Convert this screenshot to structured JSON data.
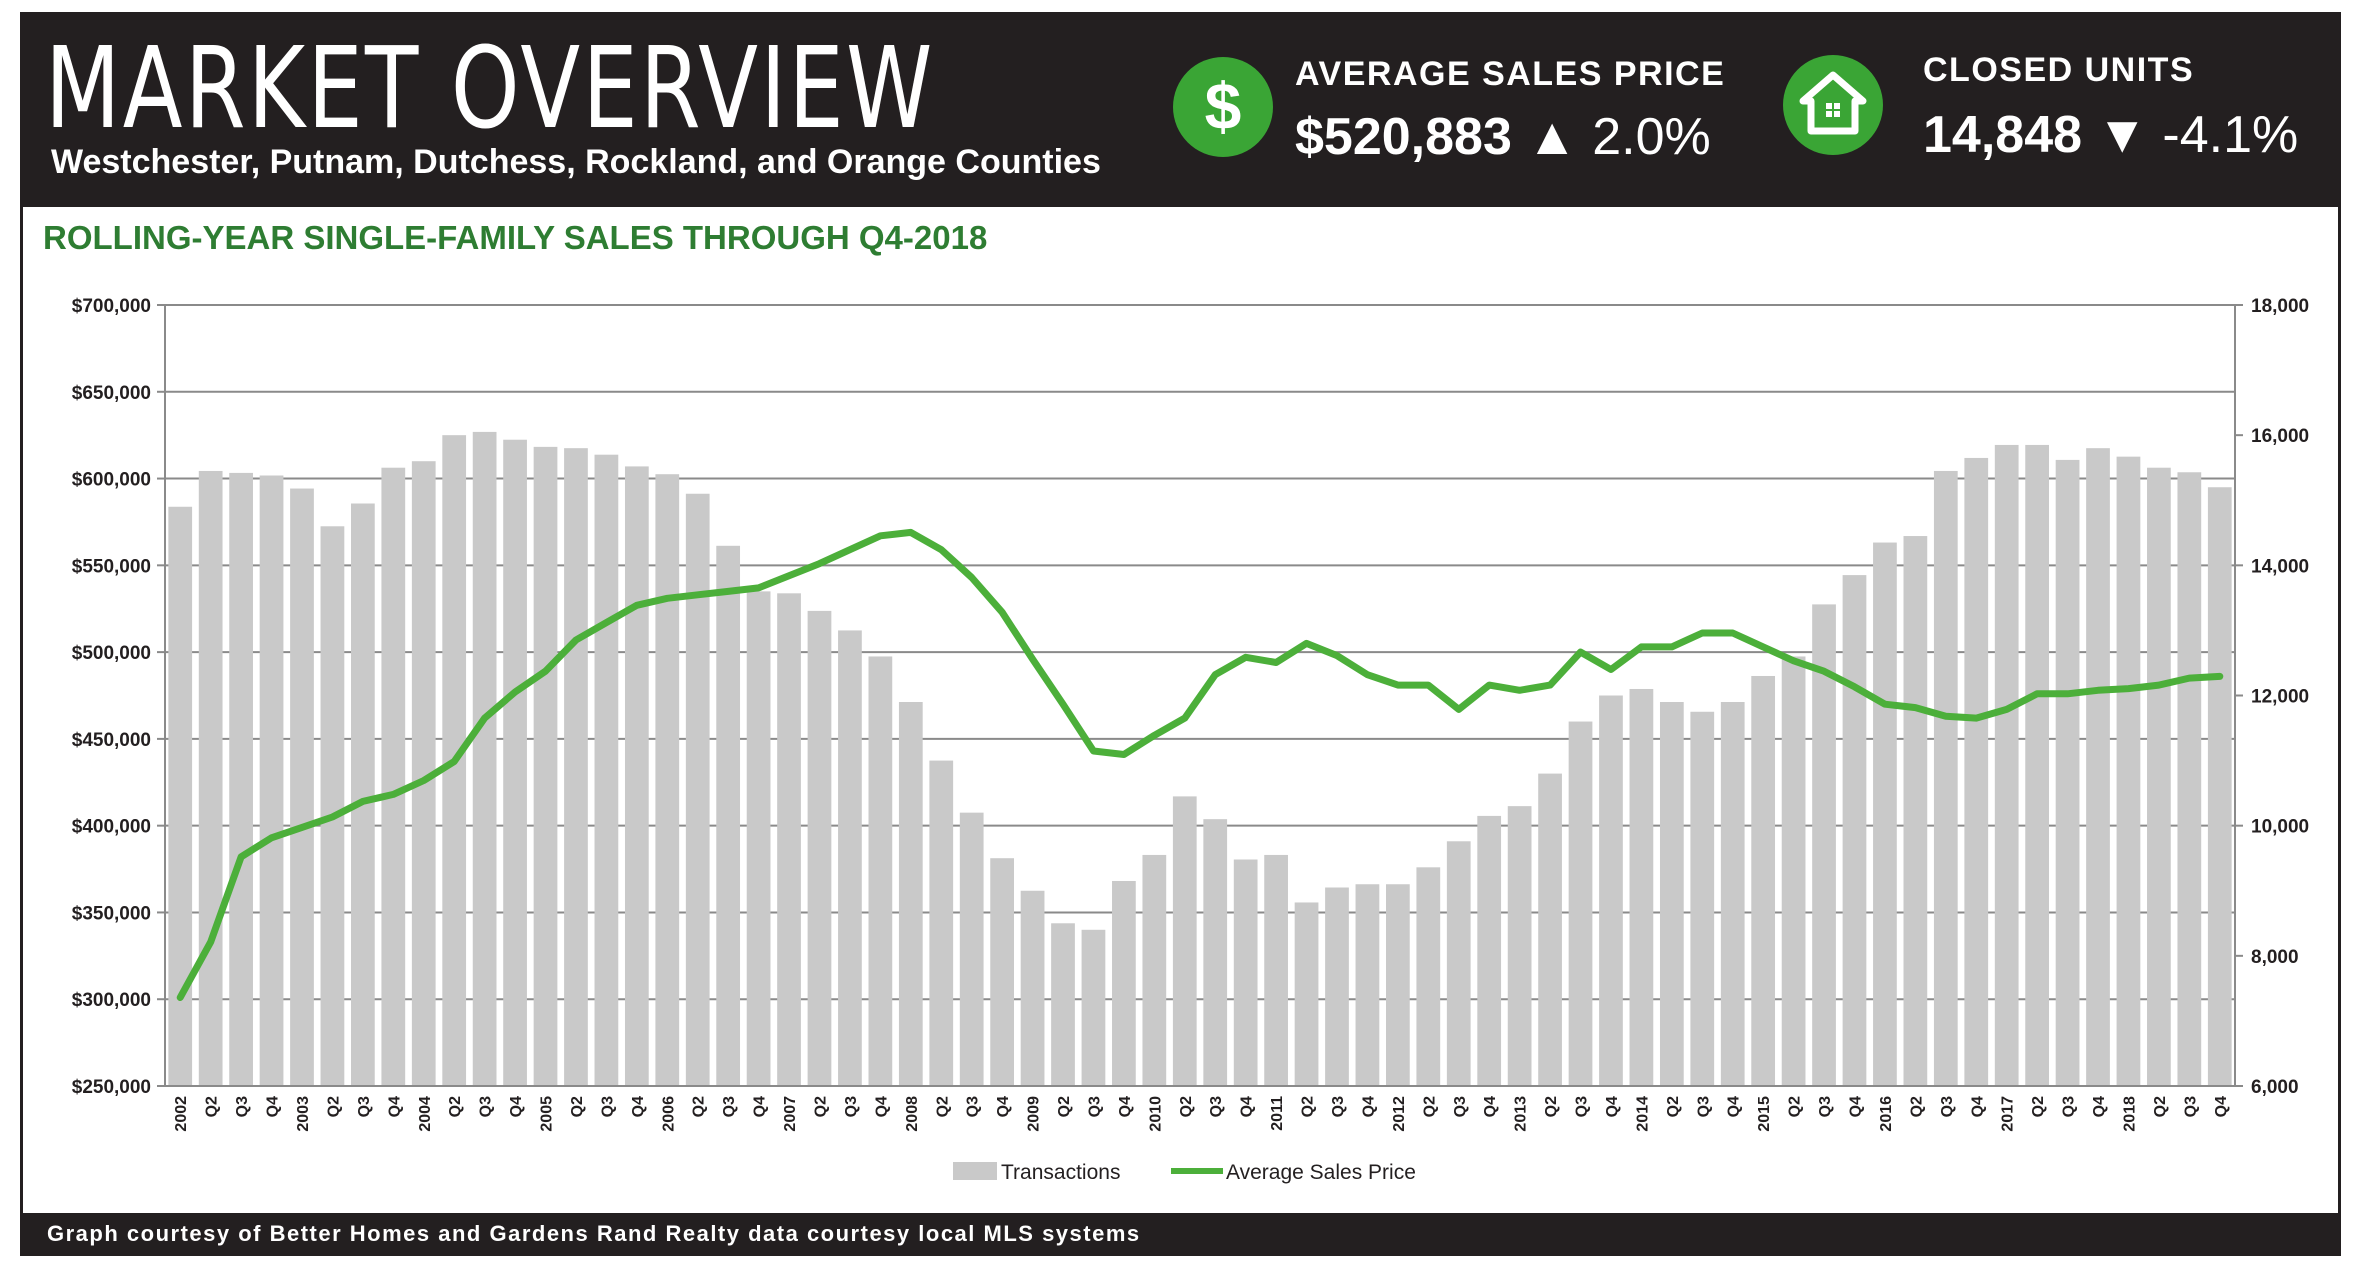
{
  "header": {
    "title": "MARKET OVERVIEW",
    "subtitle": "Westchester, Putnam, Dutchess, Rockland, and Orange Counties"
  },
  "stats": {
    "price": {
      "icon": "dollar-icon",
      "icon_glyph": "$",
      "label": "AVERAGE SALES PRICE",
      "value": "$520,883",
      "arrow": "▲",
      "change": "2.0%"
    },
    "units": {
      "icon": "house-icon",
      "label": "CLOSED UNITS",
      "value": "14,848",
      "arrow": "▼",
      "change": "-4.1%"
    }
  },
  "colors": {
    "header_bg": "#231f20",
    "accent_green": "#3aa535",
    "heading_green": "#2e7d32",
    "bar_gray": "#c9c9c9",
    "line_green": "#4caf3a"
  },
  "chart_data": {
    "type": "bar",
    "title": "ROLLING-YEAR SINGLE-FAMILY SALES THROUGH Q4-2018",
    "categories": [
      "2002",
      "Q2",
      "Q3",
      "Q4",
      "2003",
      "Q2",
      "Q3",
      "Q4",
      "2004",
      "Q2",
      "Q3",
      "Q4",
      "2005",
      "Q2",
      "Q3",
      "Q4",
      "2006",
      "Q2",
      "Q3",
      "Q4",
      "2007",
      "Q2",
      "Q3",
      "Q4",
      "2008",
      "Q2",
      "Q3",
      "Q4",
      "2009",
      "Q2",
      "Q3",
      "Q4",
      "2010",
      "Q2",
      "Q3",
      "Q4",
      "2011",
      "Q2",
      "Q3",
      "Q4",
      "2012",
      "Q2",
      "Q3",
      "Q4",
      "2013",
      "Q2",
      "Q3",
      "Q4",
      "2014",
      "Q2",
      "Q3",
      "Q4",
      "2015",
      "Q2",
      "Q3",
      "Q4",
      "2016",
      "Q2",
      "Q3",
      "Q4",
      "2017",
      "Q2",
      "Q3",
      "Q4",
      "2018",
      "Q2",
      "Q3",
      "Q4"
    ],
    "series": [
      {
        "name": "Transactions",
        "type": "bar",
        "axis": "right",
        "values": [
          14900,
          15450,
          15420,
          15380,
          15180,
          14600,
          14950,
          15500,
          15600,
          16000,
          16050,
          15930,
          15820,
          15800,
          15700,
          15520,
          15400,
          15100,
          14300,
          13600,
          13570,
          13300,
          13000,
          12600,
          11900,
          11000,
          10200,
          9500,
          9000,
          8500,
          8400,
          9150,
          9550,
          10450,
          10100,
          9480,
          9550,
          8820,
          9050,
          9100,
          9100,
          9360,
          9760,
          10150,
          10300,
          10800,
          11600,
          12000,
          12100,
          11900,
          11750,
          11900,
          12300,
          12600,
          13400,
          13850,
          14350,
          14450,
          15450,
          15650,
          15850,
          15850,
          15620,
          15800,
          15670,
          15500,
          15430,
          15200
        ]
      },
      {
        "name": "Average Sales Price",
        "type": "line",
        "axis": "left",
        "values": [
          301000,
          333000,
          382000,
          393000,
          399000,
          405000,
          414000,
          418000,
          426000,
          437000,
          462000,
          477000,
          489000,
          507000,
          517000,
          527000,
          531000,
          533000,
          535000,
          537000,
          544000,
          551000,
          559000,
          567000,
          569000,
          559000,
          543000,
          523000,
          496000,
          470000,
          443000,
          441000,
          452000,
          462000,
          487000,
          497000,
          494000,
          505000,
          498000,
          487000,
          481000,
          481000,
          467000,
          481000,
          478000,
          481000,
          500000,
          490000,
          503000,
          503000,
          511000,
          511000,
          503000,
          495000,
          489000,
          480000,
          470000,
          468000,
          463000,
          462000,
          467000,
          476000,
          476000,
          478000,
          479000,
          481000,
          485000,
          486000
        ]
      }
    ],
    "y_left": {
      "min": 250000,
      "max": 700000,
      "ticks": [
        "$250,000",
        "$300,000",
        "$350,000",
        "$400,000",
        "$450,000",
        "$500,000",
        "$550,000",
        "$600,000",
        "$650,000",
        "$700,000"
      ]
    },
    "y_right": {
      "min": 6000,
      "max": 18000,
      "ticks": [
        "6,000",
        "8,000",
        "10,000",
        "12,000",
        "14,000",
        "16,000",
        "18,000"
      ]
    },
    "grid": true,
    "legend": "bottom-center"
  },
  "footer": {
    "text": "Graph courtesy of Better Homes and Gardens Rand Realty data courtesy local MLS systems"
  }
}
